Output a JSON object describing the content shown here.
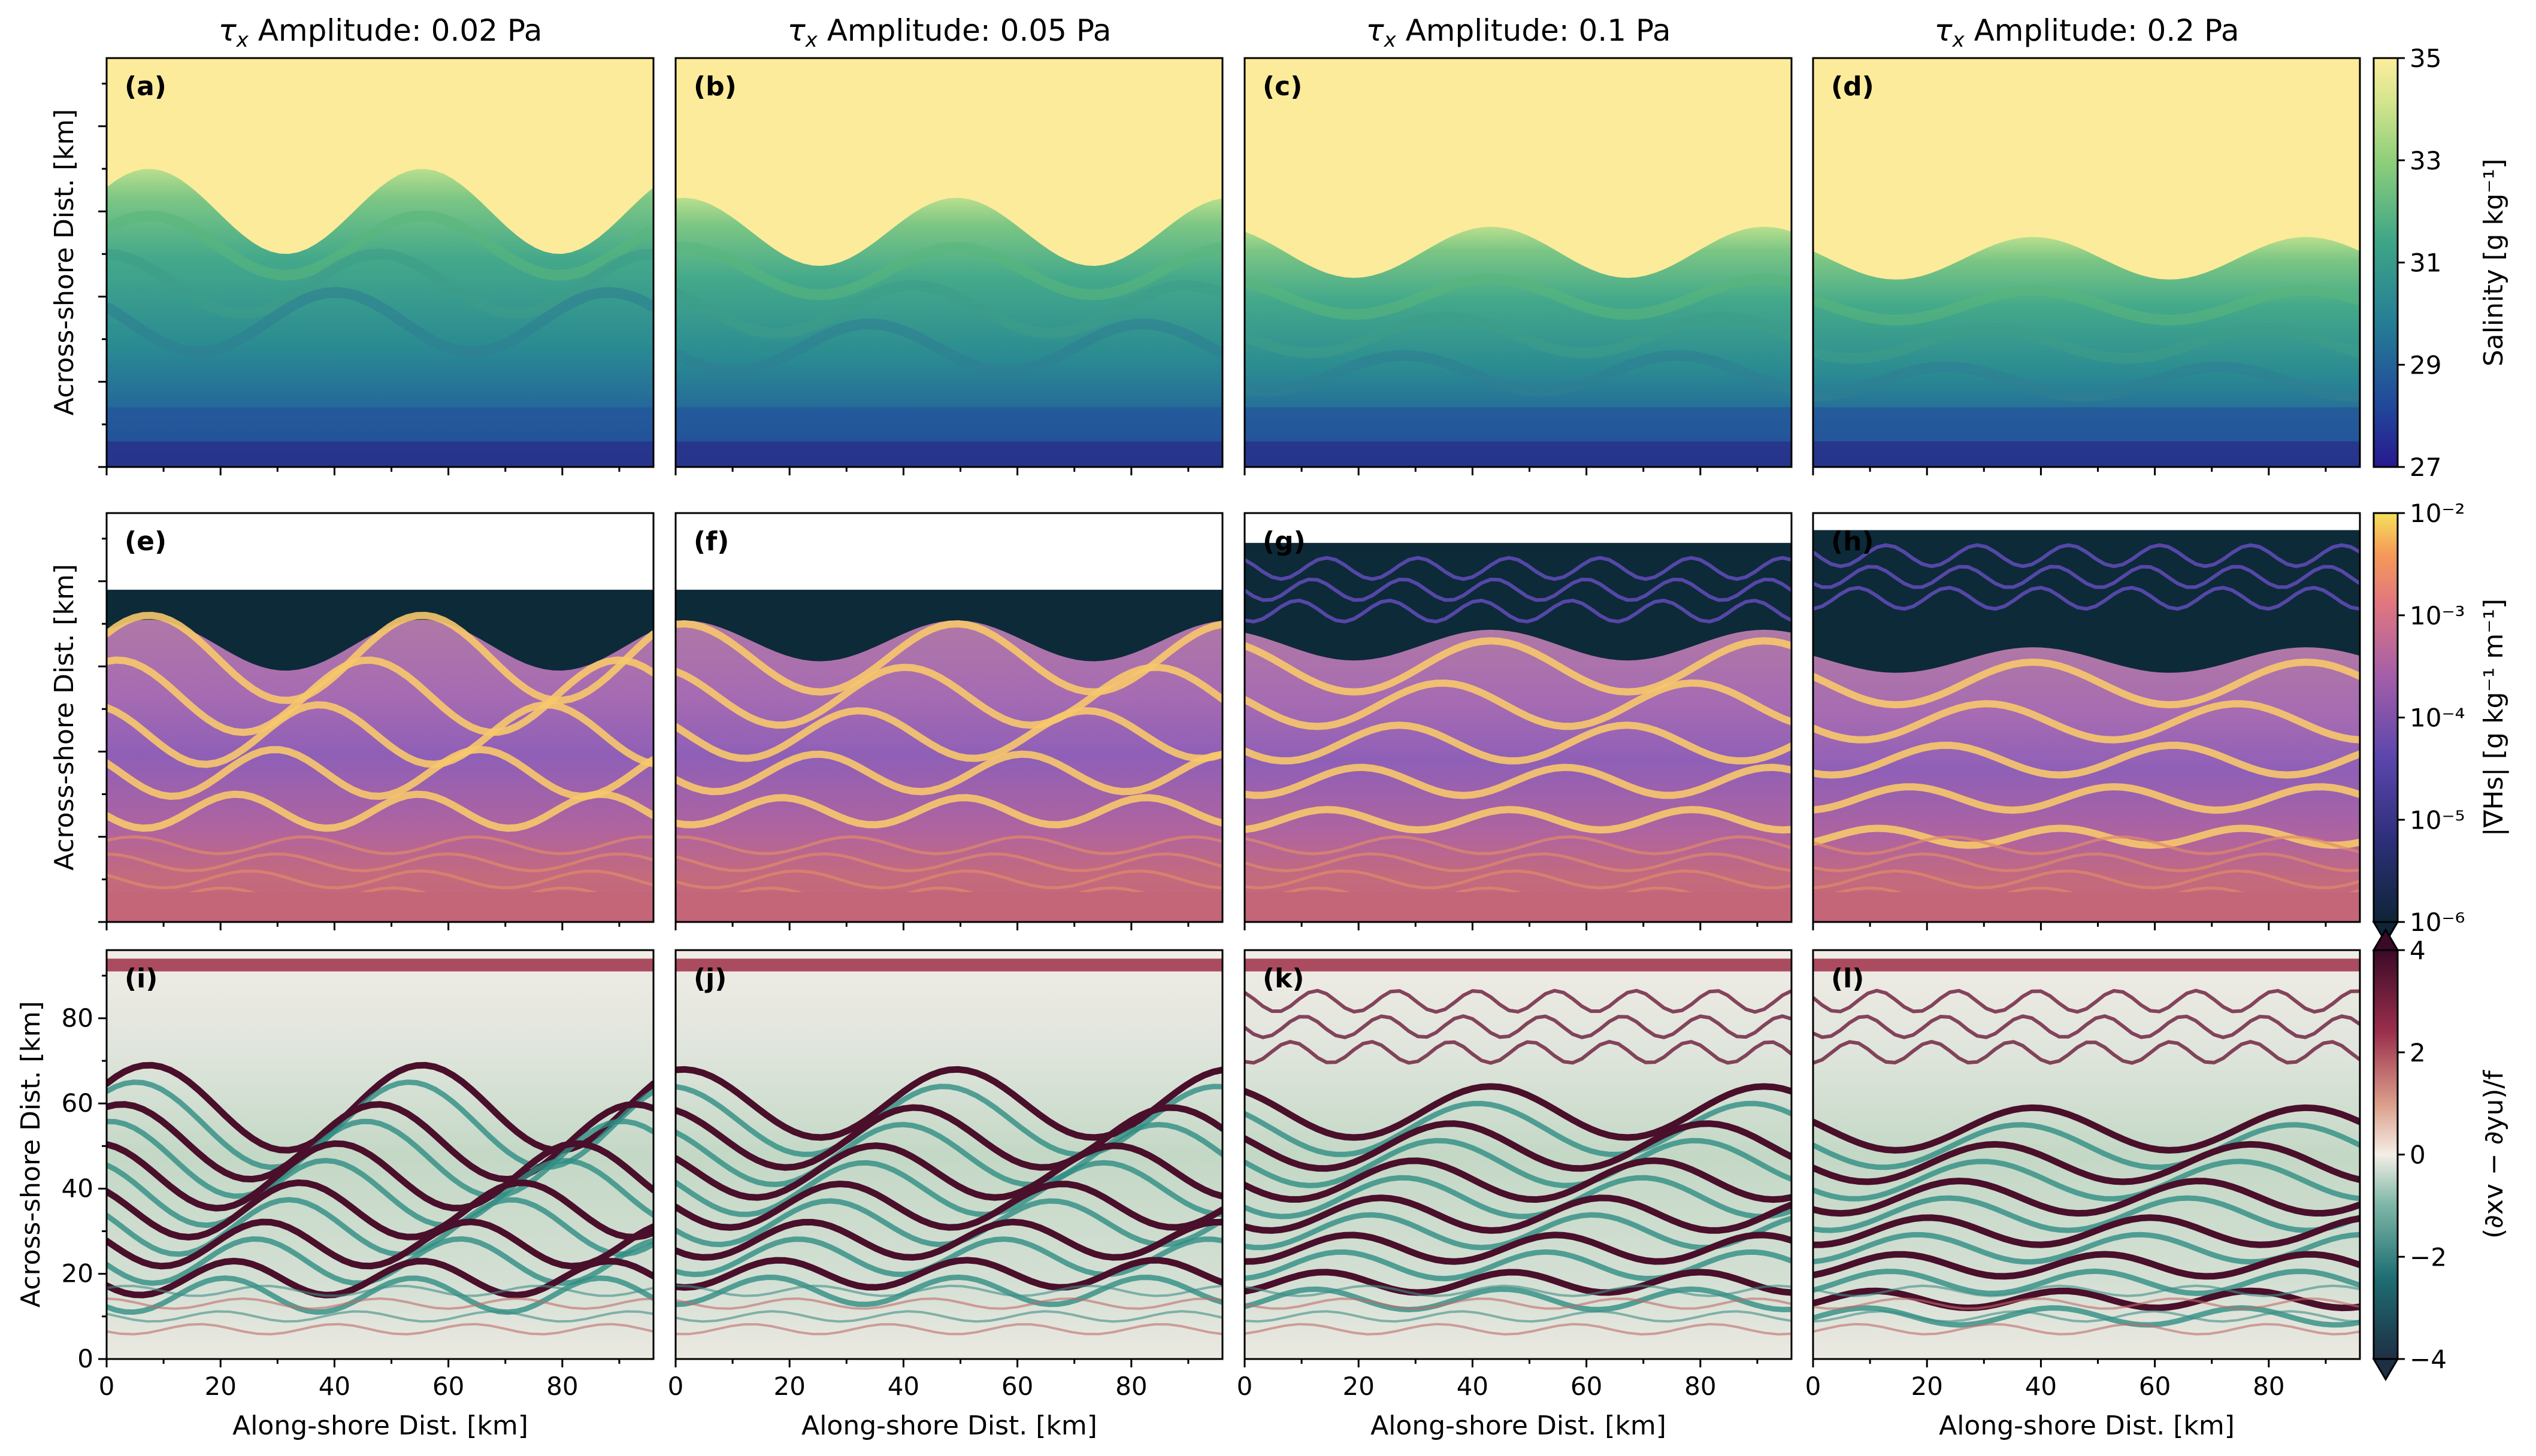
{
  "chart_data": {
    "type": "heatmap",
    "column_titles": [
      {
        "prefix": "τ",
        "sub": "x",
        "text": " Amplitude: 0.02 Pa"
      },
      {
        "prefix": "τ",
        "sub": "x",
        "text": " Amplitude: 0.05 Pa"
      },
      {
        "prefix": "τ",
        "sub": "x",
        "text": " Amplitude: 0.1 Pa"
      },
      {
        "prefix": "τ",
        "sub": "x",
        "text": " Amplitude: 0.2 Pa"
      }
    ],
    "wind_stress_amplitudes_Pa": [
      0.02,
      0.05,
      0.1,
      0.2
    ],
    "panel_labels": [
      "(a)",
      "(b)",
      "(c)",
      "(d)",
      "(e)",
      "(f)",
      "(g)",
      "(h)",
      "(i)",
      "(j)",
      "(k)",
      "(l)"
    ],
    "xlabel": "Along-shore Dist. [km]",
    "ylabel": "Across-shore Dist. [km]",
    "xlim": [
      0,
      96
    ],
    "ylim": [
      0,
      96
    ],
    "xticks": [
      0,
      20,
      40,
      60,
      80
    ],
    "yticks": [
      0,
      20,
      40,
      60,
      80
    ],
    "rows": [
      {
        "field": "salinity",
        "colorbar_label": "Salinity [g kg⁻¹]",
        "clim": [
          27,
          35
        ],
        "cticks": [
          "35",
          "33",
          "31",
          "29",
          "27"
        ],
        "colors": {
          "low": "#27348b",
          "mid": "#2e9a8a",
          "high": "#fbeb9a"
        },
        "plume_front_km": [
          66,
          60,
          54,
          52
        ]
      },
      {
        "field": "salinity_gradient",
        "colorbar_label": "|∇Hs| [g kg⁻¹ m⁻¹]",
        "clim_log10": [
          -6,
          -2
        ],
        "cticks": [
          "10⁻²",
          "10⁻³",
          "10⁻⁴",
          "10⁻⁵",
          "10⁻⁶"
        ],
        "colors": {
          "low": "#0b2a3a",
          "mid": "#6a4fb3",
          "high": "#f7a14a"
        },
        "extend": "min"
      },
      {
        "field": "vorticity",
        "colorbar_label": "(∂xv − ∂yu)/f",
        "clim": [
          -4,
          4
        ],
        "cticks": [
          "4",
          "2",
          "0",
          "−2",
          "−4"
        ],
        "colors": {
          "low": "#1b3b4a",
          "zero": "#f4eee6",
          "high": "#3d0a28"
        },
        "extend": "both"
      }
    ]
  }
}
